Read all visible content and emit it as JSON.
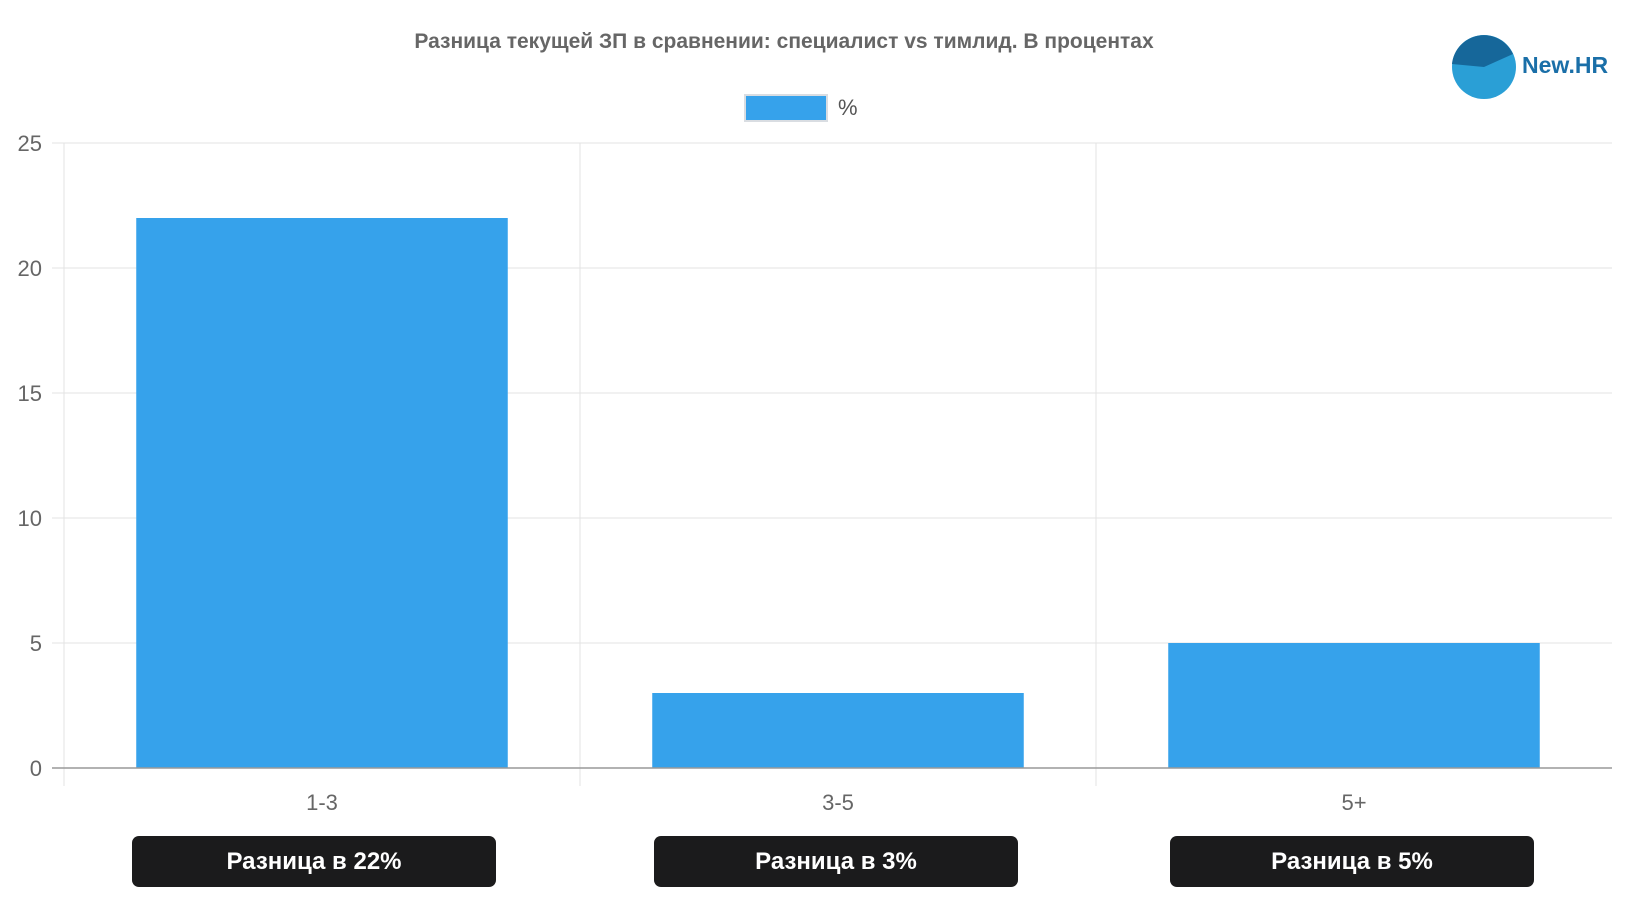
{
  "chart_data": {
    "type": "bar",
    "title": "Разница текущей ЗП в сравнении: специалист vs тимлид. В процентах",
    "categories": [
      "1-3",
      "3-5",
      "5+"
    ],
    "series": [
      {
        "name": "%",
        "values": [
          22,
          3,
          5
        ],
        "color": "#36a2eb"
      }
    ],
    "ylim": [
      0,
      25
    ],
    "y_ticks": [
      "0",
      "5",
      "10",
      "15",
      "20",
      "25"
    ],
    "grid": true,
    "legend": "top-center",
    "annotations": [
      "Разница в 22%",
      "Разница в 3%",
      "Разница в 5%"
    ]
  },
  "logo": {
    "text": "New.HR",
    "colors": [
      "#1a6fa8",
      "#2a9fd6"
    ]
  }
}
